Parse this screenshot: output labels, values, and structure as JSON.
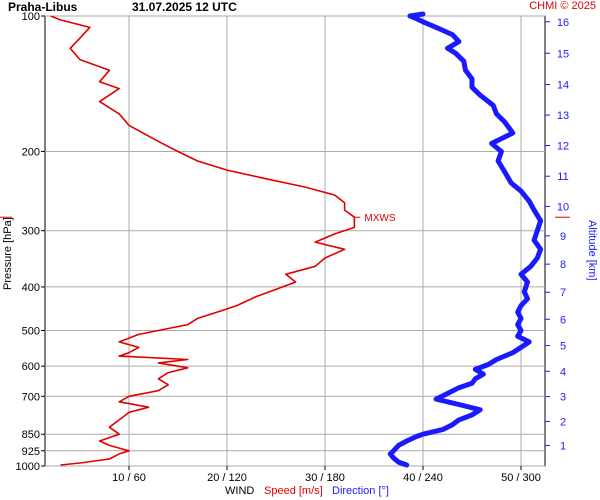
{
  "header": {
    "station": "Praha-Libus",
    "datetime": "31.07.2025 12 UTC",
    "copyright": "CHMI © 2025"
  },
  "labels": {
    "pressure_axis": "Pressure [hPa]",
    "altitude_axis": "Altitude [km]",
    "x_wind": "WIND",
    "x_speed": "Speed [m/s]",
    "x_direction": "Direction [°]",
    "mxws": "MXWS"
  },
  "colors": {
    "speed": "#e00000",
    "direction": "#1a1aff",
    "grid": "#aaaaaa",
    "text": "#000000"
  },
  "chart_data": {
    "type": "line",
    "title": "Praha-Libus 31.07.2025 12 UTC",
    "y_axis": {
      "label": "Pressure [hPa]",
      "scale": "log",
      "reversed": true,
      "range": [
        1000,
        100
      ],
      "ticks": [
        100,
        200,
        300,
        400,
        500,
        600,
        700,
        850,
        925,
        1000
      ]
    },
    "y2_axis": {
      "label": "Altitude [km]",
      "ticks": [
        1,
        2,
        3,
        4,
        5,
        6,
        7,
        8,
        9,
        10,
        11,
        12,
        13,
        14,
        15,
        16
      ],
      "tick_pressure": [
        900,
        796,
        701,
        616,
        540,
        472,
        411,
        356,
        308,
        265,
        227,
        194,
        166,
        142,
        121,
        103
      ]
    },
    "x_axis": {
      "label": "WIND",
      "speed_range": [
        0,
        45
      ],
      "direction_range": [
        0,
        270
      ],
      "ticks": [
        10,
        20,
        30,
        40,
        50
      ],
      "tick_labels": [
        "10 / 60",
        "20 / 120",
        "30 / 180",
        "40 / 240",
        "50 / 300"
      ]
    },
    "grid": true,
    "mxws": {
      "pressure": 280,
      "speed": 33,
      "label": "MXWS"
    },
    "series": [
      {
        "name": "Speed [m/s]",
        "unit": "m/s",
        "points": [
          [
            995,
            3
          ],
          [
            985,
            5
          ],
          [
            965,
            8
          ],
          [
            940,
            9
          ],
          [
            925,
            10
          ],
          [
            900,
            8
          ],
          [
            880,
            7
          ],
          [
            850,
            9
          ],
          [
            820,
            8
          ],
          [
            790,
            9
          ],
          [
            760,
            10
          ],
          [
            740,
            12
          ],
          [
            720,
            9
          ],
          [
            700,
            10
          ],
          [
            680,
            13
          ],
          [
            660,
            14
          ],
          [
            640,
            13
          ],
          [
            620,
            14
          ],
          [
            605,
            16
          ],
          [
            590,
            13
          ],
          [
            580,
            16
          ],
          [
            570,
            9
          ],
          [
            560,
            10
          ],
          [
            545,
            11
          ],
          [
            530,
            9
          ],
          [
            510,
            11
          ],
          [
            500,
            13
          ],
          [
            485,
            16
          ],
          [
            470,
            17
          ],
          [
            455,
            19
          ],
          [
            440,
            21
          ],
          [
            420,
            23
          ],
          [
            405,
            25
          ],
          [
            390,
            27
          ],
          [
            375,
            26
          ],
          [
            360,
            29
          ],
          [
            345,
            30
          ],
          [
            330,
            32
          ],
          [
            318,
            29
          ],
          [
            305,
            31
          ],
          [
            295,
            33
          ],
          [
            280,
            33
          ],
          [
            270,
            32
          ],
          [
            260,
            32
          ],
          [
            250,
            31
          ],
          [
            240,
            28
          ],
          [
            230,
            24
          ],
          [
            220,
            20
          ],
          [
            210,
            17
          ],
          [
            200,
            15
          ],
          [
            190,
            13
          ],
          [
            175,
            10
          ],
          [
            165,
            9
          ],
          [
            155,
            7
          ],
          [
            145,
            9
          ],
          [
            140,
            7
          ],
          [
            132,
            8
          ],
          [
            125,
            5
          ],
          [
            118,
            4
          ],
          [
            112,
            5
          ],
          [
            106,
            6
          ],
          [
            102,
            3
          ],
          [
            100,
            2
          ]
        ]
      },
      {
        "name": "Direction [°]",
        "unit": "deg",
        "points": [
          [
            995,
            230
          ],
          [
            980,
            225
          ],
          [
            960,
            222
          ],
          [
            940,
            220
          ],
          [
            925,
            222
          ],
          [
            900,
            225
          ],
          [
            880,
            230
          ],
          [
            860,
            236
          ],
          [
            850,
            240
          ],
          [
            830,
            252
          ],
          [
            810,
            258
          ],
          [
            790,
            262
          ],
          [
            770,
            270
          ],
          [
            750,
            275
          ],
          [
            730,
            262
          ],
          [
            710,
            248
          ],
          [
            690,
            255
          ],
          [
            670,
            262
          ],
          [
            655,
            270
          ],
          [
            640,
            272
          ],
          [
            625,
            277
          ],
          [
            610,
            272
          ],
          [
            595,
            280
          ],
          [
            580,
            285
          ],
          [
            560,
            295
          ],
          [
            545,
            300
          ],
          [
            530,
            305
          ],
          [
            515,
            298
          ],
          [
            500,
            300
          ],
          [
            485,
            298
          ],
          [
            470,
            300
          ],
          [
            455,
            298
          ],
          [
            440,
            300
          ],
          [
            425,
            304
          ],
          [
            410,
            302
          ],
          [
            390,
            304
          ],
          [
            375,
            300
          ],
          [
            360,
            306
          ],
          [
            345,
            310
          ],
          [
            330,
            312
          ],
          [
            315,
            308
          ],
          [
            300,
            310
          ],
          [
            285,
            312
          ],
          [
            270,
            308
          ],
          [
            258,
            305
          ],
          [
            245,
            300
          ],
          [
            235,
            294
          ],
          [
            222,
            290
          ],
          [
            210,
            286
          ],
          [
            200,
            288
          ],
          [
            192,
            282
          ],
          [
            182,
            295
          ],
          [
            172,
            290
          ],
          [
            165,
            285
          ],
          [
            158,
            283
          ],
          [
            150,
            275
          ],
          [
            144,
            270
          ],
          [
            138,
            270
          ],
          [
            132,
            266
          ],
          [
            126,
            265
          ],
          [
            121,
            260
          ],
          [
            118,
            255
          ],
          [
            114,
            262
          ],
          [
            110,
            258
          ],
          [
            106,
            248
          ],
          [
            103,
            240
          ],
          [
            101,
            235
          ],
          [
            100,
            232
          ],
          [
            99,
            240
          ]
        ]
      }
    ]
  }
}
